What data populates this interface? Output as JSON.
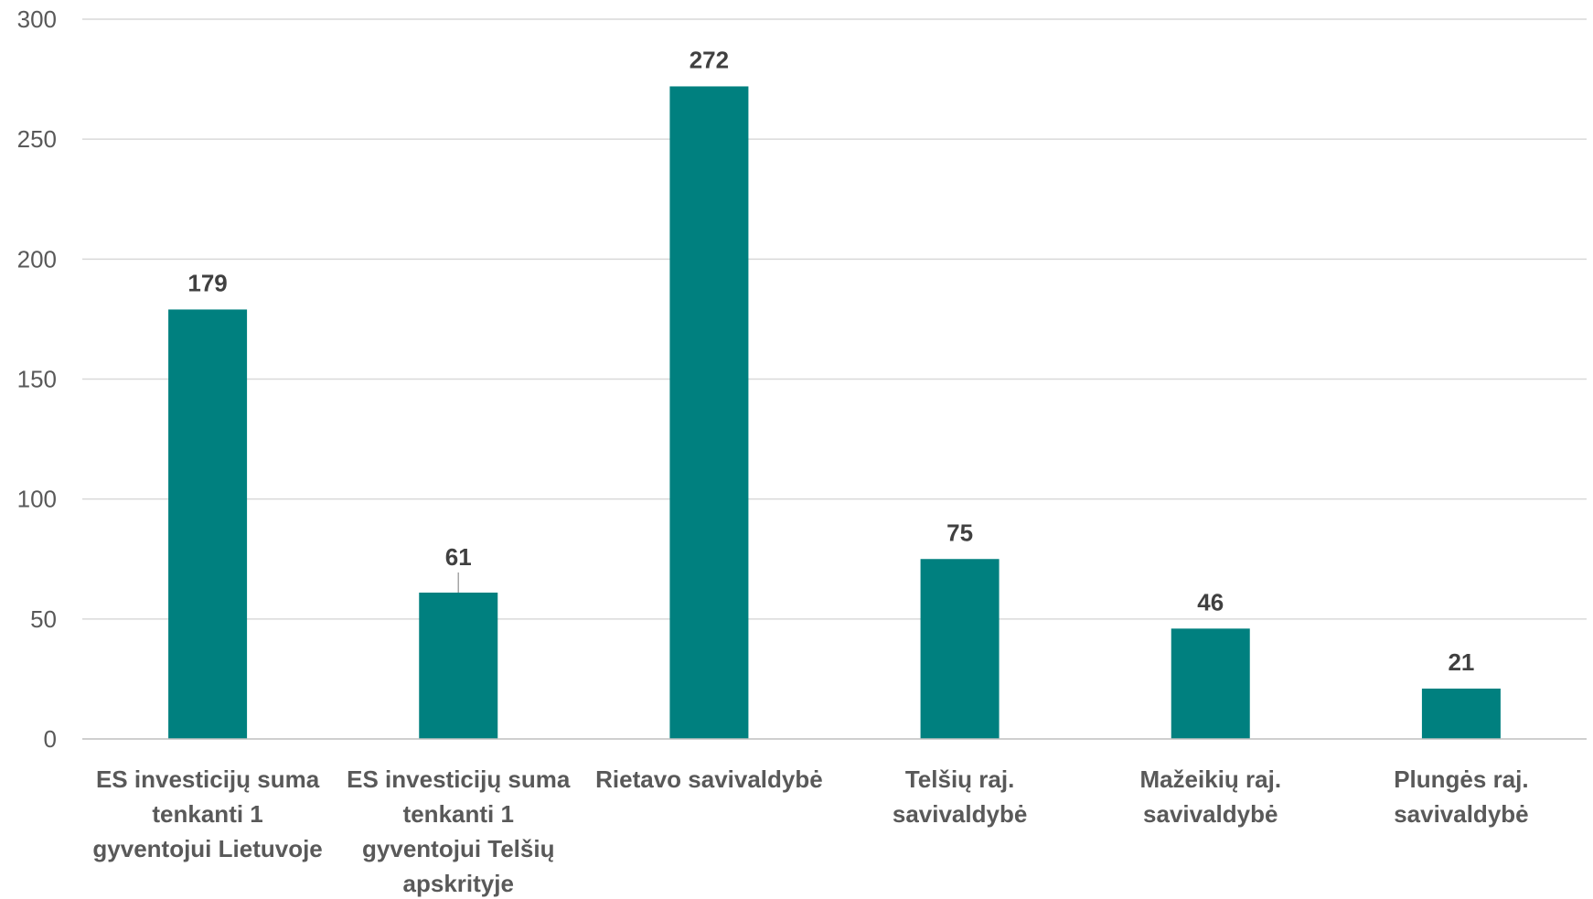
{
  "chart_data": {
    "type": "bar",
    "categories": [
      [
        "ES investicijų suma",
        "tenkanti 1",
        "gyventojui Lietuvoje"
      ],
      [
        "ES investicijų suma",
        "tenkanti 1",
        "gyventojui Telšių",
        "apskrityje"
      ],
      [
        "Rietavo savivaldybė"
      ],
      [
        "Telšių raj.",
        "savivaldybė"
      ],
      [
        "Mažeikių raj.",
        "savivaldybė"
      ],
      [
        "Plungės raj.",
        "savivaldybė"
      ]
    ],
    "values": [
      179,
      61,
      272,
      75,
      46,
      21
    ],
    "value_labels": [
      "179",
      "61",
      "272",
      "75",
      "46",
      "21"
    ],
    "yticks": [
      "0",
      "50",
      "100",
      "150",
      "200",
      "250",
      "300"
    ],
    "ylim": [
      0,
      300
    ],
    "bar_color": "#00807f",
    "grid": true,
    "legend": "none"
  }
}
